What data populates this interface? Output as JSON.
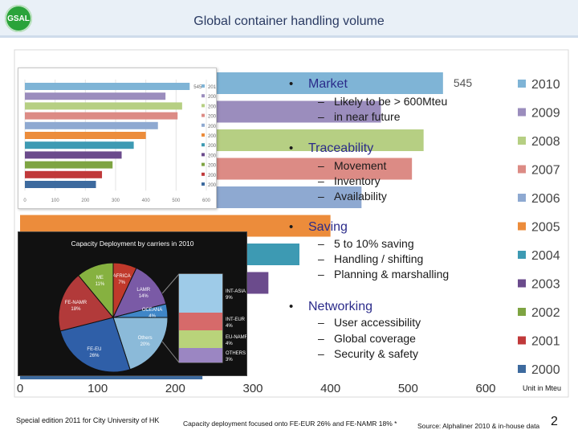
{
  "header": {
    "logo_text": "GSAL",
    "title": "Global container handling volume"
  },
  "chart_data": [
    {
      "type": "bar",
      "orientation": "horizontal",
      "categories": [
        "2010",
        "2009",
        "2008",
        "2007",
        "2006",
        "2005",
        "2004",
        "2003",
        "2002",
        "2001",
        "2000"
      ],
      "values": [
        545,
        465,
        520,
        505,
        440,
        400,
        360,
        320,
        290,
        255,
        235
      ],
      "value_label": "545",
      "colors": [
        "#7fb4d6",
        "#9b8dbd",
        "#b6cf83",
        "#dc8b85",
        "#8ea9d1",
        "#ec8c3b",
        "#3d9ab3",
        "#6b4b8c",
        "#7ea442",
        "#c0393a",
        "#3d6a9e"
      ],
      "xticks": [
        "0",
        "100",
        "200",
        "300",
        "400",
        "500",
        "600"
      ],
      "xlim": [
        0,
        600
      ],
      "unit": "Unit in Mteu"
    },
    {
      "type": "bar",
      "orientation": "horizontal",
      "categories": [
        "2010",
        "2009",
        "2008",
        "2007",
        "2006",
        "2005",
        "2004",
        "2003",
        "2002",
        "2001",
        "2000"
      ],
      "values": [
        545,
        465,
        520,
        505,
        440,
        400,
        360,
        320,
        290,
        255,
        235
      ],
      "value_label": "545",
      "xticks": [
        "0",
        "100",
        "200",
        "300",
        "400",
        "500",
        "600"
      ],
      "xlim": [
        0,
        600
      ]
    },
    {
      "type": "pie",
      "title": "Capacity Deployment by carriers in 2010",
      "slices": [
        {
          "label": "AFRICA",
          "value": 7,
          "pct": "7%",
          "color": "#c0392b"
        },
        {
          "label": "LAMR",
          "value": 14,
          "pct": "14%",
          "color": "#7a5aa6"
        },
        {
          "label": "OCEANA",
          "value": 4,
          "pct": "4%",
          "color": "#3f86c7"
        },
        {
          "label": "Others",
          "value": 20,
          "pct": "20%",
          "color": "#8bbad9"
        },
        {
          "label": "FE-EU",
          "value": 26,
          "pct": "26%",
          "color": "#2f5fa8"
        },
        {
          "label": "FE-NAMR",
          "value": 18,
          "pct": "18%",
          "color": "#b23a3a"
        },
        {
          "label": "ME",
          "value": 11,
          "pct": "11%",
          "color": "#86b140"
        }
      ],
      "breakout": [
        {
          "label": "INT-ASIA",
          "pct": "9%",
          "color": "#9ecbe8"
        },
        {
          "label": "INT-EUR",
          "pct": "4%",
          "color": "#d66a6a"
        },
        {
          "label": "EU-NAMR",
          "pct": "4%",
          "color": "#b9d37a"
        },
        {
          "label": "OTHERS",
          "pct": "3%",
          "color": "#9b86c2"
        }
      ]
    }
  ],
  "bullets": [
    {
      "label": "Market",
      "subs": [
        "Likely to be > 600Mteu",
        "in near future"
      ]
    },
    {
      "label": "Traceability",
      "subs": [
        "Movement",
        "Inventory",
        "Availability"
      ]
    },
    {
      "label": "Saving",
      "subs": [
        "5 to 10% saving",
        "Handling / shifting",
        "Planning & marshalling"
      ]
    },
    {
      "label": "Networking",
      "subs": [
        "User accessibility",
        "Global coverage",
        "Security & safety"
      ]
    }
  ],
  "footer": {
    "left": "Special edition 2011 for City University of HK",
    "mid": "Capacity deployment focused onto FE-EUR 26% and FE-NAMR 18% *",
    "source": "Source: Alphaliner 2010 & in-house data",
    "page": "2"
  }
}
